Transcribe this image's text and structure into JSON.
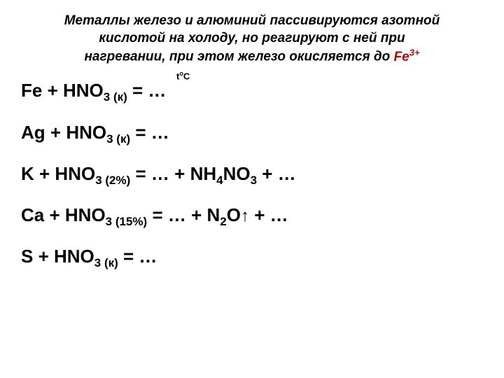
{
  "header": {
    "line1": "Металлы железо и алюминий пассивируются азотной",
    "line2": "кислотой на холоду, но реагируют с ней при",
    "line3_part1": "нагревании, при этом железо окисляется до ",
    "fe_label": "Fe",
    "fe_charge": "3+"
  },
  "temp_annotation": {
    "t": "t",
    "o": "о",
    "c": "С"
  },
  "equations": {
    "eq1": {
      "metal": "Fe",
      "plus": " + ",
      "acid": "HNO",
      "acid_sub": "3",
      "conc": " (к)",
      "equals": " = …"
    },
    "eq2": {
      "metal": "Ag",
      "plus": " + ",
      "acid": "HNO",
      "acid_sub": "3",
      "conc": " (к)",
      "equals": " = …"
    },
    "eq3": {
      "metal": "K",
      "plus": " + ",
      "acid": "HNO",
      "acid_sub": "3",
      "conc": " (2%)",
      "equals": " = … + ",
      "product": "NH",
      "product_sub1": "4",
      "product2": "NO",
      "product_sub2": "3",
      "tail": " + …"
    },
    "eq4": {
      "metal": "Ca",
      "plus": " + ",
      "acid": "HNO",
      "acid_sub": "3",
      "conc": " (15%)",
      "equals": " = … + ",
      "product": "N",
      "product_sub1": "2",
      "product2": "O",
      "arrow": "↑",
      "tail": " + …"
    },
    "eq5": {
      "metal": "S",
      "plus": " + ",
      "acid": "HNO",
      "acid_sub": "3",
      "conc": " (к)",
      "equals": " = …"
    }
  },
  "styling": {
    "background_color": "#ffffff",
    "text_color": "#000000",
    "accent_color": "#c00000",
    "header_fontsize": 19,
    "equation_fontsize": 26,
    "subscript_fontsize": 17
  }
}
